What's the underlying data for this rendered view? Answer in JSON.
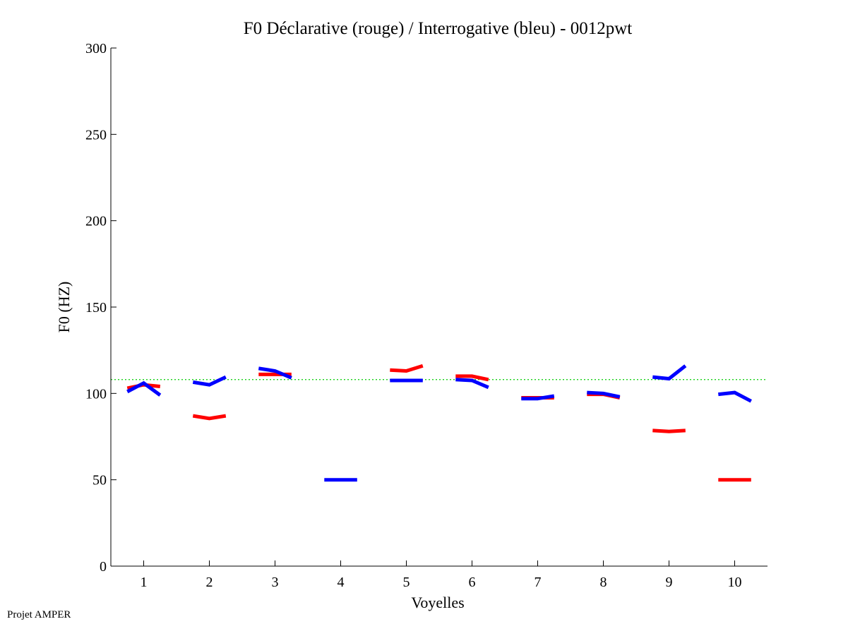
{
  "chart_data": {
    "type": "line",
    "title": "F0 Déclarative (rouge) / Interrogative (bleu) - 0012pwt",
    "xlabel": "Voyelles",
    "ylabel": "F0 (HZ)",
    "xlim": [
      0.5,
      10.5
    ],
    "ylim": [
      0,
      300
    ],
    "xticks": [
      1,
      2,
      3,
      4,
      5,
      6,
      7,
      8,
      9,
      10
    ],
    "yticks": [
      0,
      50,
      100,
      150,
      200,
      250,
      300
    ],
    "reference_line": {
      "y": 108,
      "color": "#00cc00",
      "style": "dotted"
    },
    "series": [
      {
        "name": "Déclarative",
        "color": "#ff0000",
        "segments": [
          [
            [
              0.75,
              103
            ],
            [
              1.0,
              105
            ],
            [
              1.25,
              104
            ]
          ],
          [
            [
              1.75,
              87
            ],
            [
              2.0,
              85.5
            ],
            [
              2.25,
              87
            ]
          ],
          [
            [
              2.75,
              111
            ],
            [
              3.0,
              111
            ],
            [
              3.25,
              111
            ]
          ],
          [
            [
              4.75,
              113.5
            ],
            [
              5.0,
              113
            ],
            [
              5.25,
              116
            ]
          ],
          [
            [
              5.75,
              110
            ],
            [
              6.0,
              110
            ],
            [
              6.25,
              108
            ]
          ],
          [
            [
              6.75,
              97.5
            ],
            [
              7.0,
              97.5
            ],
            [
              7.25,
              97.5
            ]
          ],
          [
            [
              7.75,
              99.5
            ],
            [
              8.0,
              99.5
            ],
            [
              8.25,
              97.5
            ]
          ],
          [
            [
              8.75,
              78.5
            ],
            [
              9.0,
              78
            ],
            [
              9.25,
              78.5
            ]
          ],
          [
            [
              9.75,
              50
            ],
            [
              10.0,
              50
            ],
            [
              10.25,
              50
            ]
          ]
        ]
      },
      {
        "name": "Interrogative",
        "color": "#0000ff",
        "segments": [
          [
            [
              0.75,
              101
            ],
            [
              1.0,
              106
            ],
            [
              1.25,
              99
            ]
          ],
          [
            [
              1.75,
              106.5
            ],
            [
              2.0,
              105
            ],
            [
              2.25,
              109.5
            ]
          ],
          [
            [
              2.75,
              114.5
            ],
            [
              3.0,
              113
            ],
            [
              3.25,
              109
            ]
          ],
          [
            [
              3.75,
              50
            ],
            [
              4.0,
              50
            ],
            [
              4.25,
              50
            ]
          ],
          [
            [
              4.75,
              107.5
            ],
            [
              5.0,
              107.5
            ],
            [
              5.25,
              107.5
            ]
          ],
          [
            [
              5.75,
              108
            ],
            [
              6.0,
              107.5
            ],
            [
              6.25,
              103.5
            ]
          ],
          [
            [
              6.75,
              97
            ],
            [
              7.0,
              97
            ],
            [
              7.25,
              98.5
            ]
          ],
          [
            [
              7.75,
              100.5
            ],
            [
              8.0,
              100
            ],
            [
              8.25,
              98
            ]
          ],
          [
            [
              8.75,
              109.5
            ],
            [
              9.0,
              108.5
            ],
            [
              9.25,
              116
            ]
          ],
          [
            [
              9.75,
              99.5
            ],
            [
              10.0,
              100.5
            ],
            [
              10.25,
              95.5
            ]
          ]
        ]
      }
    ]
  },
  "footer": "Projet AMPER"
}
